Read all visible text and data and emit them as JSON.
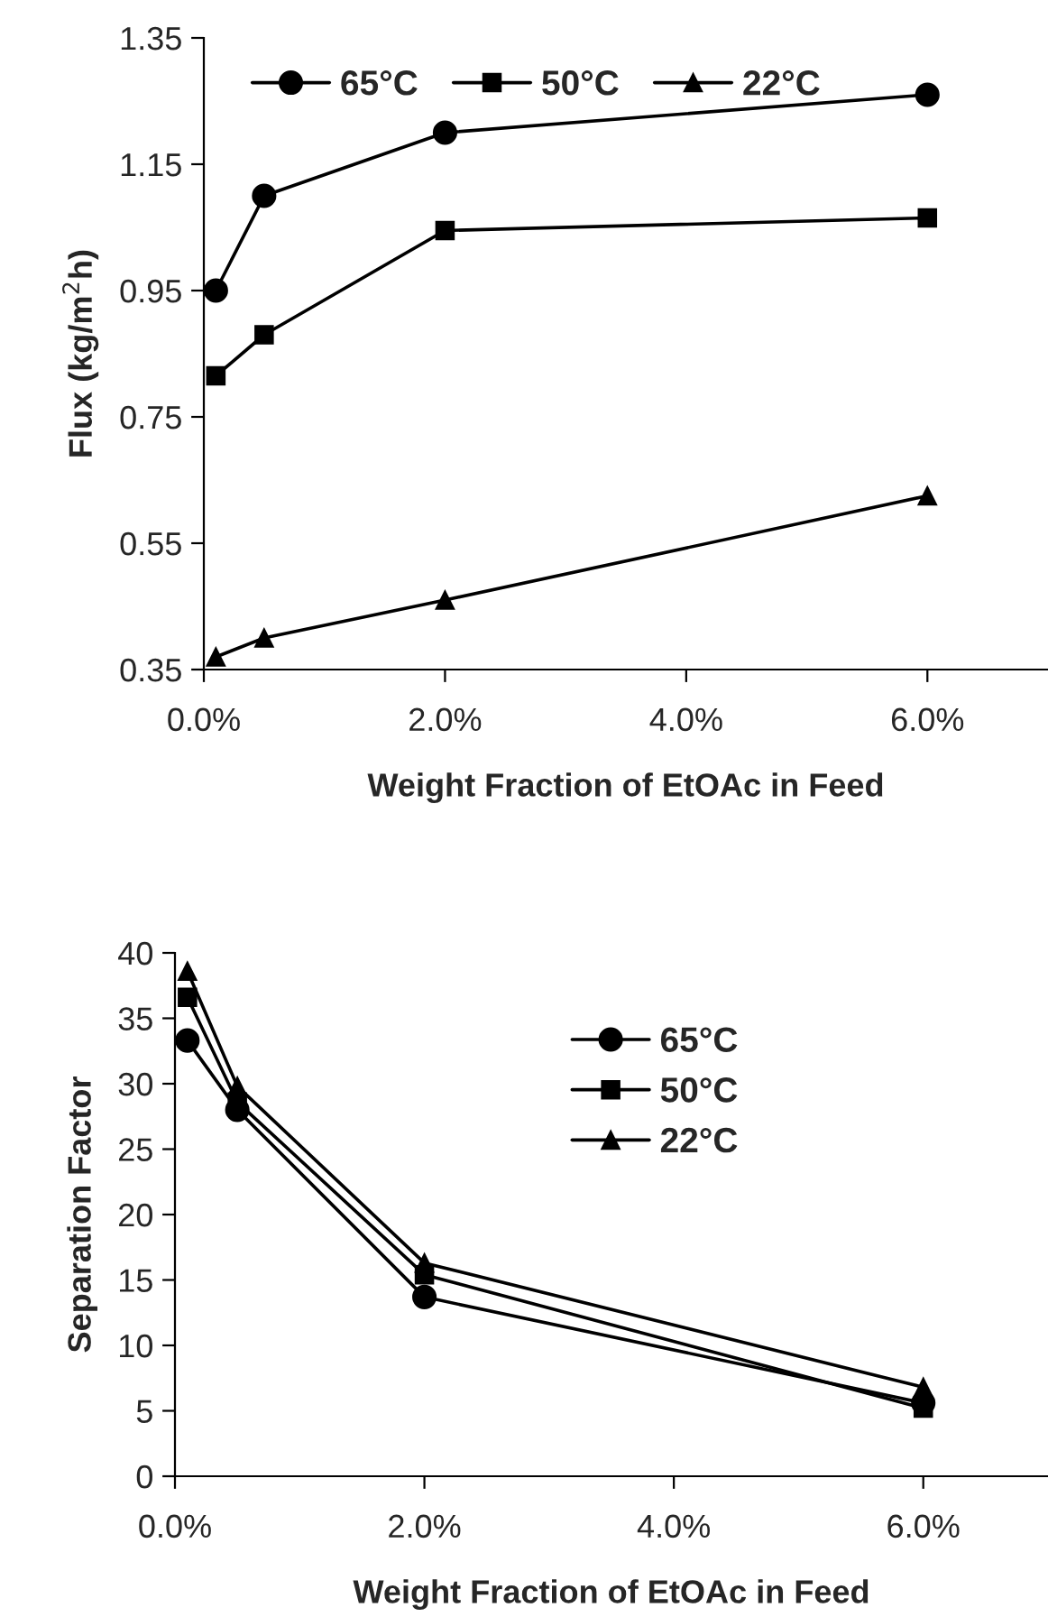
{
  "chart_data": [
    {
      "type": "line",
      "xlabel": "Weight Fraction of EtOAc in Feed",
      "ylabel": "Flux (kg/m$^{2}$h)",
      "x": [
        0.1,
        0.5,
        2,
        6
      ],
      "series": [
        {
          "name": "65°C",
          "color": "#000000",
          "marker": "circle",
          "values": [
            0.95,
            1.1,
            1.2,
            1.26
          ]
        },
        {
          "name": "50°C",
          "color": "#000000",
          "marker": "square",
          "values": [
            0.815,
            0.88,
            1.045,
            1.065
          ]
        },
        {
          "name": "22°C",
          "color": "#000000",
          "marker": "triangle",
          "values": [
            0.37,
            0.4,
            0.46,
            0.625
          ]
        }
      ],
      "xlim": [
        0,
        7
      ],
      "xticks": [
        {
          "value": 0,
          "label": "0.0%"
        },
        {
          "value": 2,
          "label": "2.0%"
        },
        {
          "value": 4,
          "label": "4.0%"
        },
        {
          "value": 6,
          "label": "6.0%"
        }
      ],
      "ylim": [
        0.35,
        1.35
      ],
      "yticks": [
        0.35,
        0.55,
        0.75,
        0.95,
        1.15,
        1.35
      ],
      "grid": false,
      "legend": "top left",
      "line_style": "solid"
    },
    {
      "type": "line",
      "xlabel": "Weight Fraction of EtOAc in Feed",
      "ylabel": "Separation Factor",
      "x": [
        0.1,
        0.5,
        2,
        6
      ],
      "series": [
        {
          "name": "65°C",
          "color": "#000000",
          "marker": "circle",
          "values": [
            33.3,
            28.0,
            13.7,
            5.6
          ]
        },
        {
          "name": "50°C",
          "color": "#000000",
          "marker": "square",
          "values": [
            36.6,
            28.6,
            15.4,
            5.2
          ]
        },
        {
          "name": "22°C",
          "color": "#000000",
          "marker": "triangle",
          "values": [
            38.6,
            29.8,
            16.3,
            6.8
          ]
        }
      ],
      "xlim": [
        0,
        7
      ],
      "xticks": [
        {
          "value": 0,
          "label": "0.0%"
        },
        {
          "value": 2,
          "label": "2.0%"
        },
        {
          "value": 4,
          "label": "4.0%"
        },
        {
          "value": 6,
          "label": "6.0%"
        }
      ],
      "ylim": [
        0,
        40
      ],
      "yticks": [
        0,
        5,
        10,
        15,
        20,
        25,
        30,
        35,
        40
      ],
      "grid": false,
      "legend": "top",
      "line_style": "solid"
    }
  ]
}
